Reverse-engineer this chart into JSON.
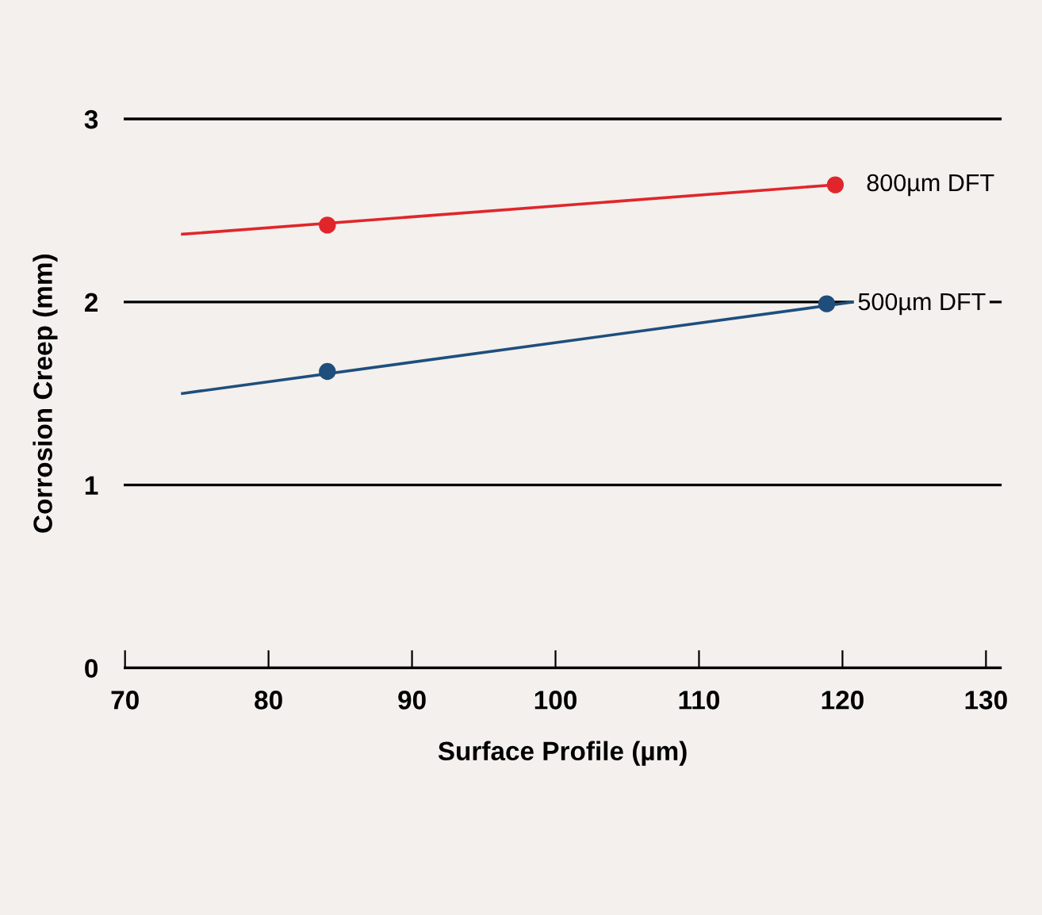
{
  "chart_data": {
    "type": "line",
    "xlabel": "Surface Profile (µm)",
    "ylabel": "Corrosion Creep (mm)",
    "xlim": [
      70,
      131
    ],
    "xticks": [
      70,
      80,
      90,
      100,
      110,
      120,
      130
    ],
    "ylim": [
      0,
      3
    ],
    "yticks": [
      0,
      1,
      2,
      3
    ],
    "grid": "y",
    "legend": false,
    "series": [
      {
        "color": "#e0262b",
        "x": [
          74,
          119.5
        ],
        "values": [
          2.37,
          2.64
        ],
        "marker": "none"
      },
      {
        "color": "#1f4e7d",
        "x": [
          74,
          120.8
        ],
        "values": [
          1.5,
          2.0
        ],
        "marker": "none"
      },
      {
        "type": "scatter",
        "name": "800µm DFT",
        "color": "#e0262b",
        "x": [
          84.1,
          119.5
        ],
        "values": [
          2.42,
          2.64
        ],
        "marker": "circle"
      },
      {
        "type": "scatter",
        "name": "500µm DFT",
        "color": "#1f4e7d",
        "x": [
          84.1,
          118.9
        ],
        "values": [
          1.62,
          1.99
        ],
        "marker": "circle"
      }
    ]
  }
}
